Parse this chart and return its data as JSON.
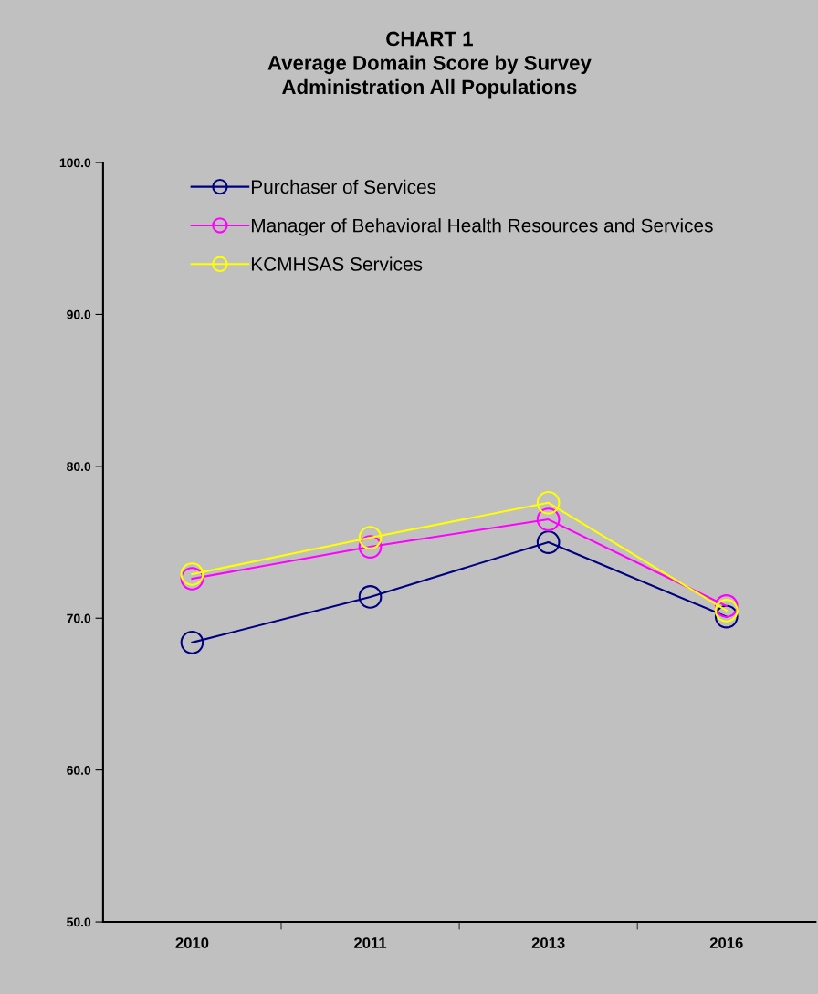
{
  "chart_data": {
    "type": "line",
    "title": "CHART 1\nAverage Domain Score by Survey\nAdministration All Populations",
    "categories": [
      "2010",
      "2011",
      "2013",
      "2016"
    ],
    "series": [
      {
        "name": "Purchaser of Services",
        "color": "#000080",
        "values": [
          68.4,
          71.4,
          75.0,
          70.1
        ]
      },
      {
        "name": "Manager of Behavioral Health Resources and Services",
        "color": "#ff00ff",
        "values": [
          72.6,
          74.7,
          76.5,
          70.8
        ]
      },
      {
        "name": "KCMHSAS Services",
        "color": "#ffff00",
        "values": [
          72.9,
          75.3,
          77.6,
          70.5
        ]
      }
    ],
    "ylim": [
      50,
      100
    ],
    "yticks": [
      {
        "value": 50,
        "label": "50.0"
      },
      {
        "value": 60,
        "label": "60.0"
      },
      {
        "value": 70,
        "label": "70.0"
      },
      {
        "value": 80,
        "label": "80.0"
      },
      {
        "value": 90,
        "label": "90.0"
      },
      {
        "value": 100,
        "label": "100.0"
      }
    ],
    "grid": false,
    "legend": "top left",
    "marker": "circle",
    "line_style": "solid"
  }
}
